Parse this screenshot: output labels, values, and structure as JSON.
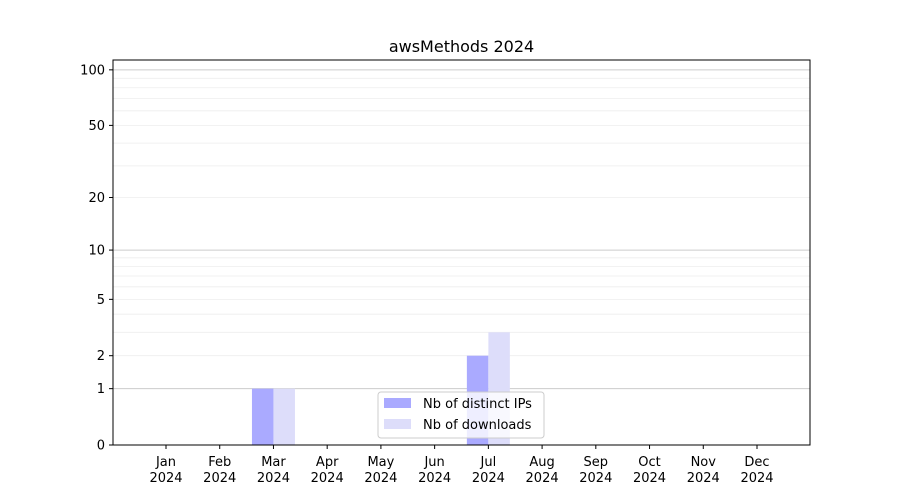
{
  "chart_data": {
    "type": "bar",
    "title": "awsMethods 2024",
    "xlabel": "",
    "ylabel": "",
    "categories": [
      "Jan\n2024",
      "Feb\n2024",
      "Mar\n2024",
      "Apr\n2024",
      "May\n2024",
      "Jun\n2024",
      "Jul\n2024",
      "Aug\n2024",
      "Sep\n2024",
      "Oct\n2024",
      "Nov\n2024",
      "Dec\n2024"
    ],
    "series": [
      {
        "name": "Nb of distinct IPs",
        "color": "#aaaaff",
        "values": [
          0,
          0,
          1,
          0,
          0,
          0,
          2,
          0,
          0,
          0,
          0,
          0
        ]
      },
      {
        "name": "Nb of downloads",
        "color": "#ddddfa",
        "values": [
          0,
          0,
          1,
          0,
          0,
          0,
          3,
          0,
          0,
          0,
          0,
          0
        ]
      }
    ],
    "yscale": "log(1+y)",
    "yticks": [
      0,
      1,
      2,
      5,
      10,
      20,
      50,
      100
    ],
    "ylim": [
      0,
      113
    ],
    "grid": true,
    "legend": "lower-center"
  }
}
